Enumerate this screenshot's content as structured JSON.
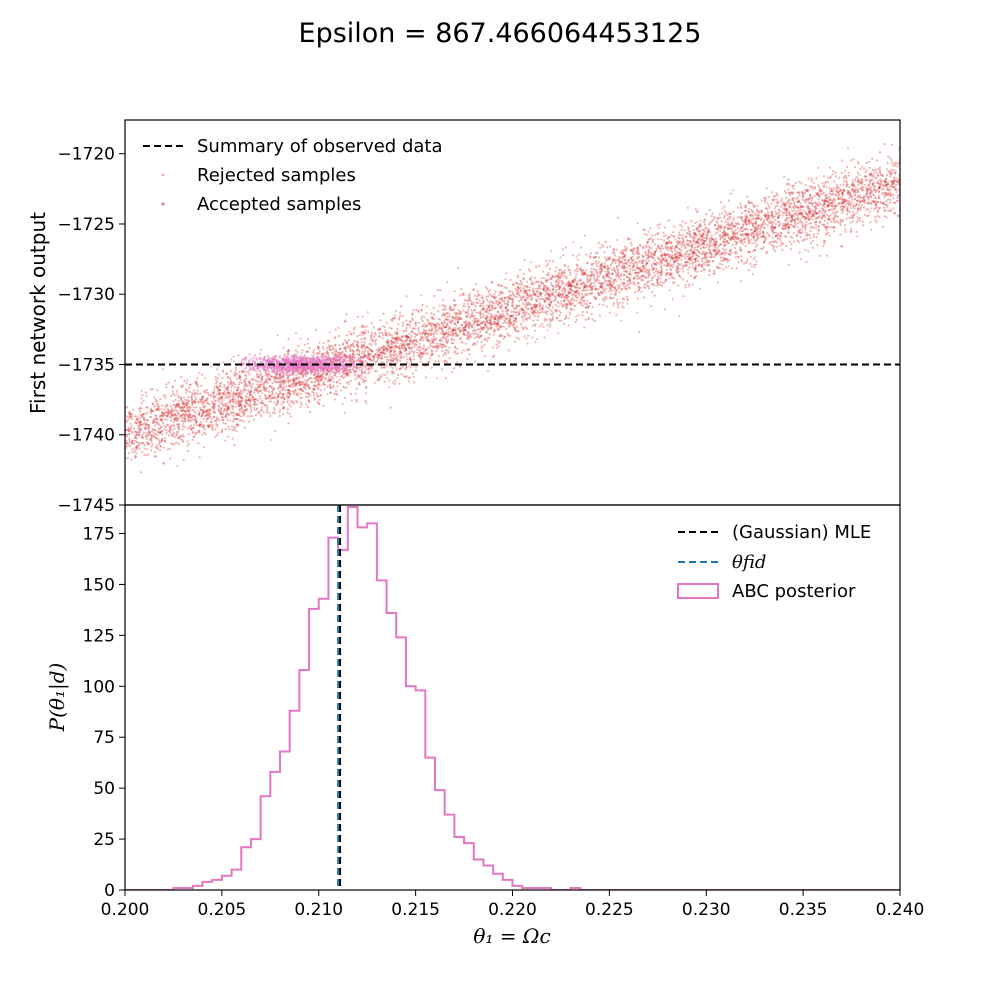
{
  "title": "Epsilon = 867.466064453125",
  "colors": {
    "rejected": "#d62728",
    "accepted": "#e377c2",
    "observed": "#000000",
    "mle": "#000000",
    "fid": "#1f77b4",
    "posterior": "#e377c2"
  },
  "chart_data": [
    {
      "type": "scatter",
      "ylabel": "First network output",
      "xlim": [
        0.2,
        0.24
      ],
      "ylim": [
        -1745,
        -1717.6
      ],
      "y_ticks": [
        -1745,
        -1740,
        -1735,
        -1730,
        -1725,
        -1720
      ],
      "y_tick_labels": [
        "−1745",
        "−1740",
        "−1735",
        "−1730",
        "−1725",
        "−1720"
      ],
      "observed_summary": -1735,
      "legend": {
        "placement": "upper-left",
        "entries": [
          "Summary of observed data",
          "Rejected samples",
          "Accepted samples"
        ]
      },
      "rejected_trend": {
        "x": [
          0.2,
          0.24
        ],
        "y": [
          -1740.0,
          -1722.0
        ],
        "spread": 1.1
      },
      "accepted_band": {
        "y_center": -1735,
        "y_halfwidth": 0.6,
        "x_range": [
          0.2058,
          0.2124
        ]
      }
    },
    {
      "type": "histogram",
      "xlabel": "θ₁ = Ωc",
      "ylabel": "P(θ₁|d)",
      "xlim": [
        0.2,
        0.24
      ],
      "ylim": [
        0,
        189
      ],
      "x_ticks": [
        0.2,
        0.205,
        0.21,
        0.215,
        0.22,
        0.225,
        0.23,
        0.235,
        0.24
      ],
      "x_tick_labels": [
        "0.200",
        "0.205",
        "0.210",
        "0.215",
        "0.220",
        "0.225",
        "0.230",
        "0.235",
        "0.240"
      ],
      "y_ticks": [
        0,
        25,
        50,
        75,
        100,
        125,
        150,
        175
      ],
      "y_tick_labels": [
        "0",
        "25",
        "50",
        "75",
        "100",
        "125",
        "150",
        "175"
      ],
      "mle": 0.2111,
      "theta_fid": 0.211,
      "legend": {
        "placement": "upper-right",
        "entries": [
          "(Gaussian) MLE",
          "θfid",
          "ABC posterior"
        ]
      },
      "bin_width": 0.0005,
      "bins_start": 0.2025,
      "counts": [
        1,
        1,
        2,
        4,
        5,
        7,
        10,
        21,
        25,
        46,
        58,
        68,
        88,
        108,
        138,
        143,
        173,
        167,
        188,
        178,
        180,
        152,
        136,
        124,
        100,
        98,
        65,
        49,
        37,
        26,
        23,
        15,
        12,
        8,
        5,
        2,
        1,
        1,
        1,
        0,
        0,
        1
      ]
    }
  ]
}
